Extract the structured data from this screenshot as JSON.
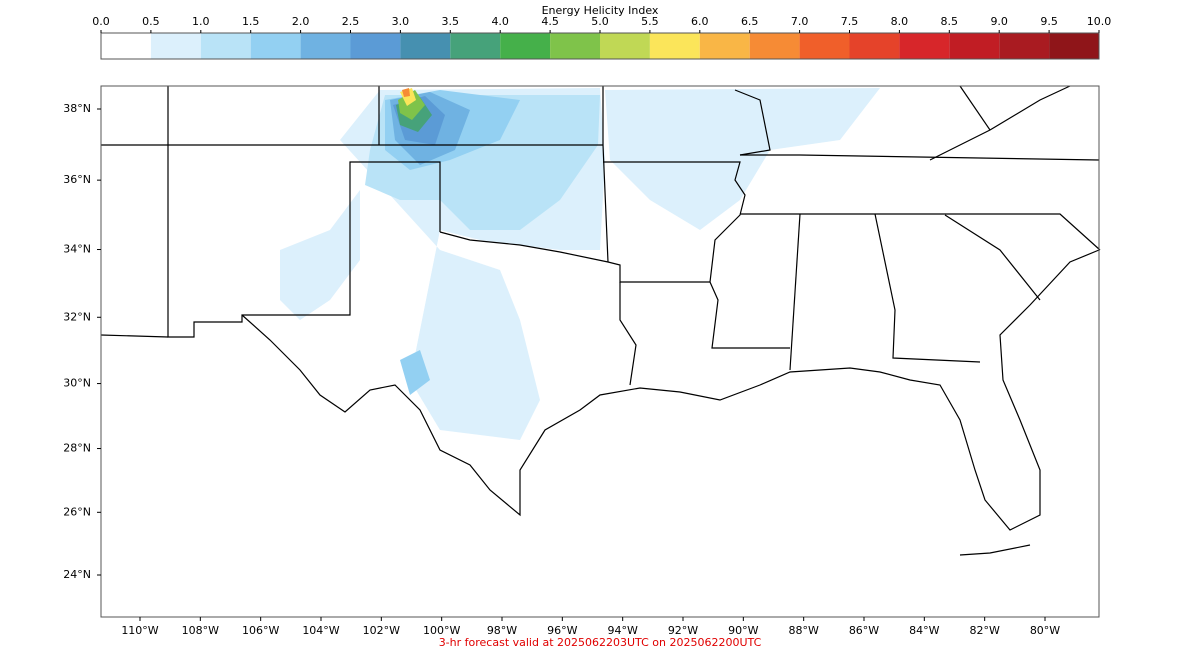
{
  "colorbar": {
    "title": "Energy Helicity Index",
    "ticks": [
      {
        "value": 0,
        "label": "0.0"
      },
      {
        "value": 0.5,
        "label": "0.5"
      },
      {
        "value": 1,
        "label": "1.0"
      },
      {
        "value": 1.5,
        "label": "1.5"
      },
      {
        "value": 2,
        "label": "2.0"
      },
      {
        "value": 2.5,
        "label": "2.5"
      },
      {
        "value": 3,
        "label": "3.0"
      },
      {
        "value": 3.5,
        "label": "3.5"
      },
      {
        "value": 4,
        "label": "4.0"
      },
      {
        "value": 4.5,
        "label": "4.5"
      },
      {
        "value": 5,
        "label": "5.0"
      },
      {
        "value": 5.5,
        "label": "5.5"
      },
      {
        "value": 6,
        "label": "6.0"
      },
      {
        "value": 6.5,
        "label": "6.5"
      },
      {
        "value": 7,
        "label": "7.0"
      },
      {
        "value": 7.5,
        "label": "7.5"
      },
      {
        "value": 8,
        "label": "8.0"
      },
      {
        "value": 8.5,
        "label": "8.5"
      },
      {
        "value": 9,
        "label": "9.0"
      },
      {
        "value": 9.5,
        "label": "9.5"
      },
      {
        "value": 10,
        "label": "10.0"
      }
    ],
    "colors": [
      "#ffffff",
      "#dcf0fc",
      "#b9e3f7",
      "#93d0f2",
      "#6fb2e2",
      "#5b9bd6",
      "#4690b0",
      "#46a27a",
      "#45b04a",
      "#7fc34a",
      "#c0d855",
      "#fbe55a",
      "#f9b646",
      "#f68b35",
      "#f05f2a",
      "#e5432a",
      "#d7262a",
      "#c11d24",
      "#a91b21",
      "#8f1519"
    ]
  },
  "map": {
    "lat_labels": [
      {
        "value": 38,
        "label": "38°N"
      },
      {
        "value": 36,
        "label": "36°N"
      },
      {
        "value": 34,
        "label": "34°N"
      },
      {
        "value": 32,
        "label": "32°N"
      },
      {
        "value": 30,
        "label": "30°N"
      },
      {
        "value": 28,
        "label": "28°N"
      },
      {
        "value": 26,
        "label": "26°N"
      },
      {
        "value": 24,
        "label": "24°N"
      }
    ],
    "lon_labels": [
      {
        "value": -110,
        "label": "110°W"
      },
      {
        "value": -108,
        "label": "108°W"
      },
      {
        "value": -106,
        "label": "106°W"
      },
      {
        "value": -104,
        "label": "104°W"
      },
      {
        "value": -102,
        "label": "102°W"
      },
      {
        "value": -100,
        "label": "100°W"
      },
      {
        "value": -98,
        "label": "98°W"
      },
      {
        "value": -96,
        "label": "96°W"
      },
      {
        "value": -94,
        "label": "94°W"
      },
      {
        "value": -92,
        "label": "92°W"
      },
      {
        "value": -90,
        "label": "90°W"
      },
      {
        "value": -88,
        "label": "88°W"
      },
      {
        "value": -86,
        "label": "86°W"
      },
      {
        "value": -84,
        "label": "84°W"
      },
      {
        "value": -82,
        "label": "82°W"
      },
      {
        "value": -80,
        "label": "80°W"
      }
    ]
  },
  "footer": "3-hr forecast valid at 2025062203UTC on 2025062200UTC"
}
